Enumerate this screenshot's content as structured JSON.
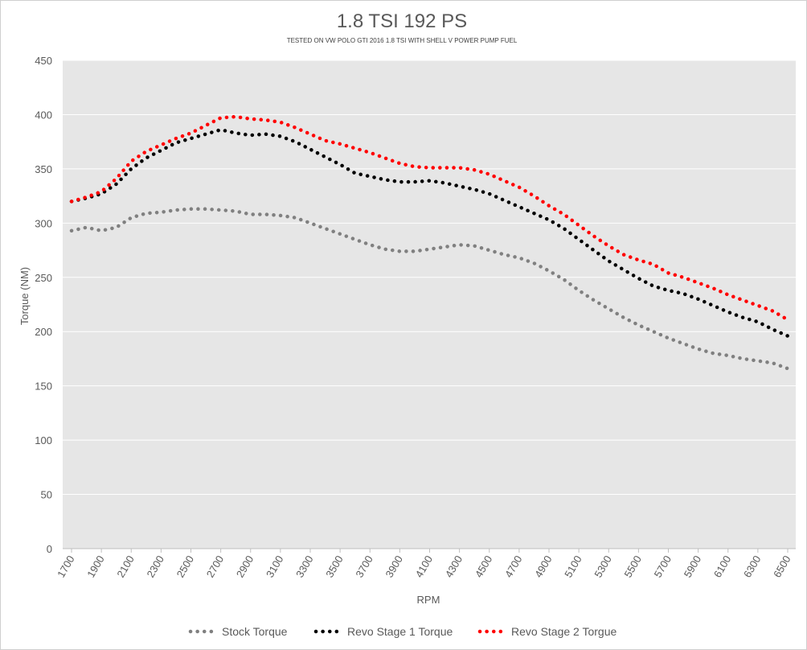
{
  "chart_data": {
    "type": "line",
    "title": "1.8 TSI 192 PS",
    "subtitle": "TESTED ON VW POLO GTI 2016 1.8 TSI WITH SHELL V POWER PUMP FUEL",
    "xlabel": "RPM",
    "ylabel": "Torque (NM)",
    "ylim": [
      0,
      450
    ],
    "yticks": [
      0,
      50,
      100,
      150,
      200,
      250,
      300,
      350,
      400,
      450
    ],
    "xlim": [
      1700,
      6500
    ],
    "xticks": [
      1700,
      1900,
      2100,
      2300,
      2500,
      2700,
      2900,
      3100,
      3300,
      3500,
      3700,
      3900,
      4100,
      4300,
      4500,
      4700,
      4900,
      5100,
      5300,
      5500,
      5700,
      5900,
      6100,
      6300,
      6500
    ],
    "grid": "horizontal",
    "legend_position": "bottom",
    "background_color": "#e6e6e6",
    "x": [
      1700,
      1800,
      1900,
      2000,
      2100,
      2200,
      2300,
      2400,
      2500,
      2600,
      2700,
      2800,
      2900,
      3000,
      3100,
      3200,
      3300,
      3400,
      3500,
      3600,
      3700,
      3800,
      3900,
      4000,
      4100,
      4200,
      4300,
      4400,
      4500,
      4600,
      4700,
      4800,
      4900,
      5000,
      5100,
      5200,
      5300,
      5400,
      5500,
      5600,
      5700,
      5800,
      5900,
      6000,
      6100,
      6200,
      6300,
      6400,
      6500
    ],
    "series": [
      {
        "name": "Stock Torque",
        "color": "#808080",
        "values": [
          293,
          296,
          293,
          296,
          305,
          309,
          310,
          312,
          313,
          313,
          312,
          311,
          308,
          308,
          307,
          305,
          300,
          295,
          290,
          285,
          280,
          276,
          274,
          274,
          276,
          278,
          280,
          279,
          275,
          271,
          268,
          263,
          256,
          248,
          238,
          229,
          221,
          213,
          206,
          200,
          194,
          189,
          184,
          180,
          178,
          175,
          173,
          171,
          166
        ]
      },
      {
        "name": "Revo Stage 1 Torque",
        "color": "#000000",
        "values": [
          320,
          323,
          327,
          336,
          350,
          360,
          367,
          374,
          378,
          382,
          386,
          383,
          381,
          382,
          380,
          375,
          368,
          361,
          354,
          346,
          343,
          340,
          338,
          338,
          339,
          337,
          334,
          331,
          327,
          321,
          315,
          309,
          303,
          295,
          285,
          275,
          265,
          257,
          249,
          242,
          238,
          235,
          230,
          224,
          218,
          213,
          209,
          202,
          196
        ]
      },
      {
        "name": "Revo Stage 2 Torgue",
        "color": "#ff0000",
        "values": [
          320,
          324,
          329,
          341,
          357,
          366,
          372,
          378,
          383,
          390,
          397,
          398,
          396,
          395,
          393,
          388,
          382,
          376,
          373,
          369,
          365,
          360,
          355,
          352,
          351,
          351,
          351,
          349,
          345,
          339,
          333,
          325,
          316,
          308,
          298,
          288,
          279,
          271,
          266,
          262,
          254,
          250,
          245,
          240,
          234,
          229,
          224,
          219,
          211
        ]
      }
    ]
  }
}
